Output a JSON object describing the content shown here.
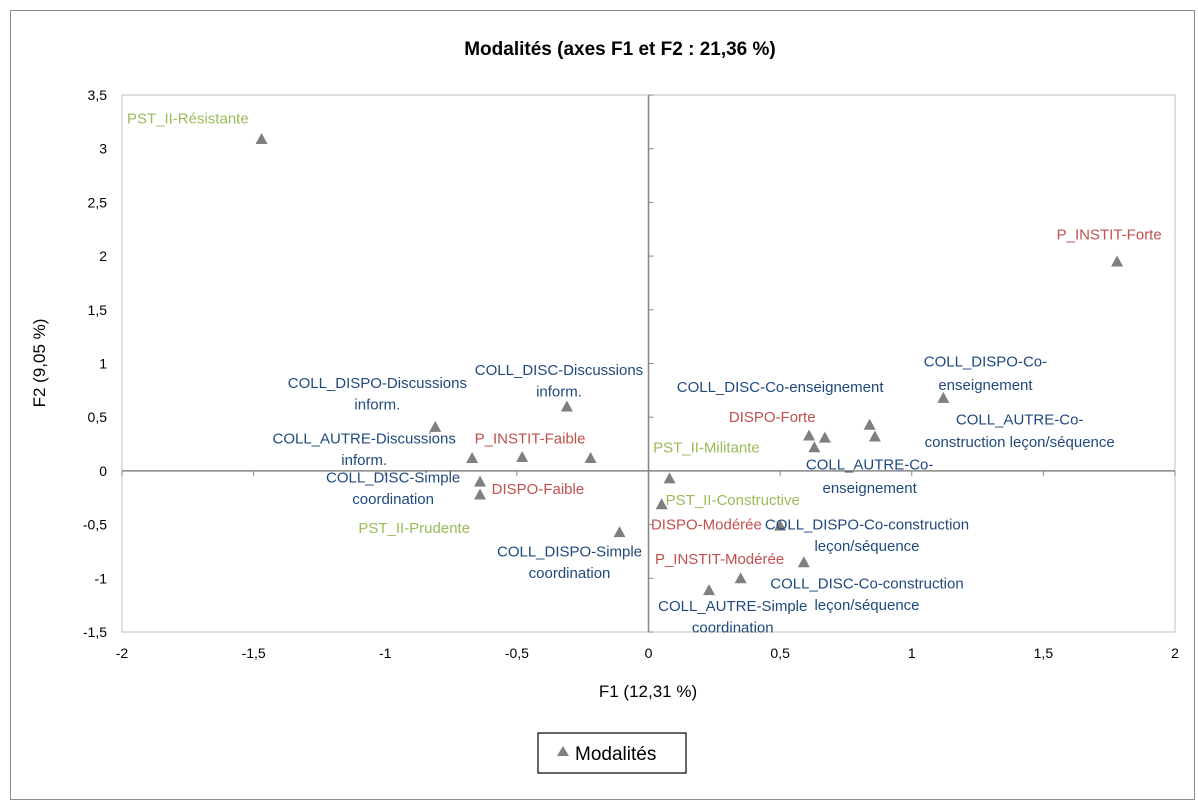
{
  "chart_data": {
    "type": "scatter",
    "title": "Modalités (axes F1 et F2 : 21,36 %)",
    "xlabel": "F1 (12,31 %)",
    "ylabel": "F2 (9,05 %)",
    "xlim": [
      -2,
      2
    ],
    "ylim": [
      -1.5,
      3.5
    ],
    "x_ticks": [
      -2,
      -1.5,
      -1,
      -0.5,
      0,
      0.5,
      1,
      1.5,
      2
    ],
    "x_tick_labels": [
      "-2",
      "-1,5",
      "-1",
      "-0,5",
      "0",
      "0,5",
      "1",
      "1,5",
      "2"
    ],
    "y_ticks": [
      -1.5,
      -1,
      -0.5,
      0,
      0.5,
      1,
      1.5,
      2,
      2.5,
      3,
      3.5
    ],
    "y_tick_labels": [
      "-1,5",
      "-1",
      "-0,5",
      "0",
      "0,5",
      "1",
      "1,5",
      "2",
      "2,5",
      "3",
      "3,5"
    ],
    "grid": false,
    "legend": {
      "position": "bottom",
      "entries": [
        "Modalités"
      ]
    },
    "marker_color": "#7f7f7f",
    "points": [
      {
        "x": -1.47,
        "y": 3.09
      },
      {
        "x": 1.78,
        "y": 1.95
      },
      {
        "x": -0.81,
        "y": 0.41
      },
      {
        "x": -0.31,
        "y": 0.6
      },
      {
        "x": -0.67,
        "y": 0.12
      },
      {
        "x": -0.48,
        "y": 0.13
      },
      {
        "x": -0.22,
        "y": 0.12
      },
      {
        "x": -0.64,
        "y": -0.1
      },
      {
        "x": -0.64,
        "y": -0.22
      },
      {
        "x": -0.11,
        "y": -0.57
      },
      {
        "x": 0.08,
        "y": -0.07
      },
      {
        "x": 0.05,
        "y": -0.31
      },
      {
        "x": 0.5,
        "y": -0.51
      },
      {
        "x": 0.59,
        "y": -0.85
      },
      {
        "x": 0.35,
        "y": -1.0
      },
      {
        "x": 0.23,
        "y": -1.11
      },
      {
        "x": 0.61,
        "y": 0.33
      },
      {
        "x": 0.63,
        "y": 0.22
      },
      {
        "x": 0.67,
        "y": 0.31
      },
      {
        "x": 0.84,
        "y": 0.43
      },
      {
        "x": 0.86,
        "y": 0.32
      },
      {
        "x": 1.12,
        "y": 0.68
      }
    ],
    "labels": [
      {
        "text": "PST_II-Résistante",
        "color": "#9bbb59",
        "x": -1.75,
        "y": 3.28,
        "anchor": "middle"
      },
      {
        "text": "P_INSTIT-Forte",
        "color": "#c0504d",
        "x": 1.75,
        "y": 2.2,
        "anchor": "middle"
      },
      {
        "text": "COLL_DISC-Discussions",
        "color": "#1f497d",
        "x": -0.34,
        "y": 0.94,
        "anchor": "middle"
      },
      {
        "text": "inform.",
        "color": "#1f497d",
        "x": -0.34,
        "y": 0.74,
        "anchor": "middle"
      },
      {
        "text": "COLL_DISPO-Discussions",
        "color": "#1f497d",
        "x": -1.03,
        "y": 0.82,
        "anchor": "middle"
      },
      {
        "text": "inform.",
        "color": "#1f497d",
        "x": -1.03,
        "y": 0.62,
        "anchor": "middle"
      },
      {
        "text": "COLL_AUTRE-Discussions",
        "color": "#1f497d",
        "x": -1.08,
        "y": 0.3,
        "anchor": "middle"
      },
      {
        "text": "inform.",
        "color": "#1f497d",
        "x": -1.08,
        "y": 0.1,
        "anchor": "middle"
      },
      {
        "text": "P_INSTIT-Faible",
        "color": "#c0504d",
        "x": -0.45,
        "y": 0.3,
        "anchor": "middle"
      },
      {
        "text": "COLL_DISC-Simple",
        "color": "#1f497d",
        "x": -0.97,
        "y": -0.06,
        "anchor": "middle"
      },
      {
        "text": "coordination",
        "color": "#1f497d",
        "x": -0.97,
        "y": -0.26,
        "anchor": "middle"
      },
      {
        "text": "DISPO-Faible",
        "color": "#c0504d",
        "x": -0.42,
        "y": -0.17,
        "anchor": "middle"
      },
      {
        "text": "PST_II-Prudente",
        "color": "#9bbb59",
        "x": -0.89,
        "y": -0.53,
        "anchor": "middle"
      },
      {
        "text": "COLL_DISPO-Simple",
        "color": "#1f497d",
        "x": -0.3,
        "y": -0.75,
        "anchor": "middle"
      },
      {
        "text": "coordination",
        "color": "#1f497d",
        "x": -0.3,
        "y": -0.95,
        "anchor": "middle"
      },
      {
        "text": "COLL_DISPO-Co-",
        "color": "#1f497d",
        "x": 1.28,
        "y": 1.02,
        "anchor": "middle"
      },
      {
        "text": "enseignement",
        "color": "#1f497d",
        "x": 1.28,
        "y": 0.8,
        "anchor": "middle"
      },
      {
        "text": "COLL_DISC-Co-enseignement",
        "color": "#1f497d",
        "x": 0.5,
        "y": 0.78,
        "anchor": "middle"
      },
      {
        "text": "DISPO-Forte",
        "color": "#c0504d",
        "x": 0.47,
        "y": 0.5,
        "anchor": "middle"
      },
      {
        "text": "COLL_AUTRE-Co-",
        "color": "#1f497d",
        "x": 1.41,
        "y": 0.48,
        "anchor": "middle"
      },
      {
        "text": "construction leçon/séquence",
        "color": "#1f497d",
        "x": 1.41,
        "y": 0.27,
        "anchor": "middle"
      },
      {
        "text": "PST_II-Militante",
        "color": "#9bbb59",
        "x": 0.22,
        "y": 0.22,
        "anchor": "middle"
      },
      {
        "text": "COLL_AUTRE-Co-",
        "color": "#1f497d",
        "x": 0.84,
        "y": 0.06,
        "anchor": "middle"
      },
      {
        "text": "enseignement",
        "color": "#1f497d",
        "x": 0.84,
        "y": -0.16,
        "anchor": "middle"
      },
      {
        "text": "PST_II-Constructive",
        "color": "#9bbb59",
        "x": 0.32,
        "y": -0.27,
        "anchor": "middle"
      },
      {
        "text": "DISPO-Modérée",
        "color": "#c0504d",
        "x": 0.22,
        "y": -0.5,
        "anchor": "middle"
      },
      {
        "text": "COLL_DISPO-Co-construction",
        "color": "#1f497d",
        "x": 0.83,
        "y": -0.5,
        "anchor": "middle"
      },
      {
        "text": "leçon/séquence",
        "color": "#1f497d",
        "x": 0.83,
        "y": -0.7,
        "anchor": "middle"
      },
      {
        "text": "P_INSTIT-Modérée",
        "color": "#c0504d",
        "x": 0.27,
        "y": -0.82,
        "anchor": "middle"
      },
      {
        "text": "COLL_DISC-Co-construction",
        "color": "#1f497d",
        "x": 0.83,
        "y": -1.05,
        "anchor": "middle"
      },
      {
        "text": "leçon/séquence",
        "color": "#1f497d",
        "x": 0.83,
        "y": -1.25,
        "anchor": "middle"
      },
      {
        "text": "COLL_AUTRE-Simple",
        "color": "#1f497d",
        "x": 0.32,
        "y": -1.26,
        "anchor": "middle"
      },
      {
        "text": "coordination",
        "color": "#1f497d",
        "x": 0.32,
        "y": -1.46,
        "anchor": "middle"
      }
    ]
  }
}
